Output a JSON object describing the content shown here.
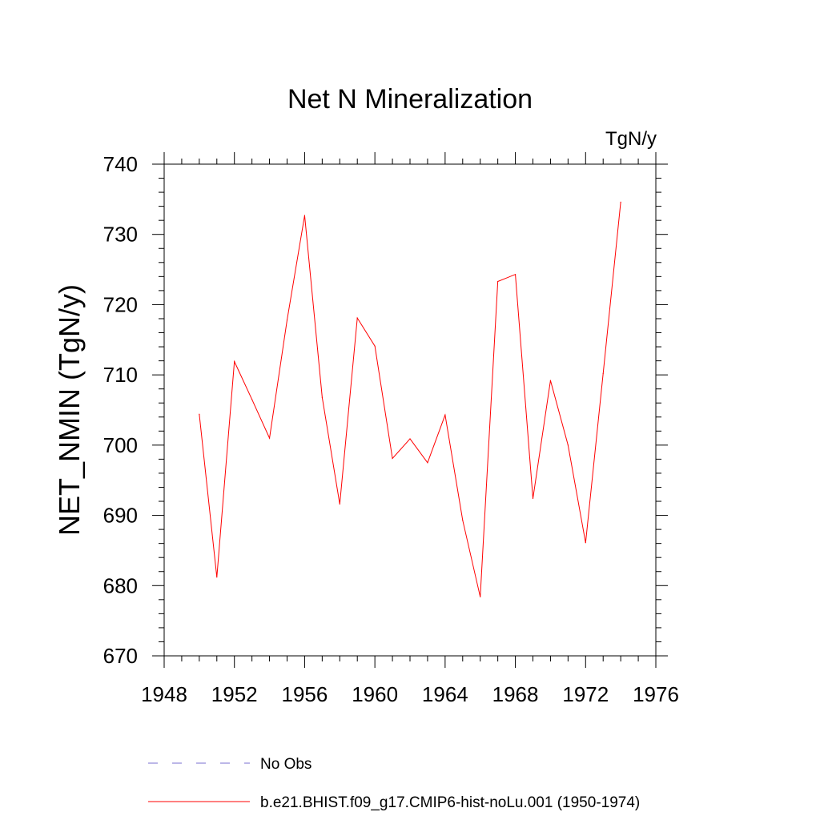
{
  "chart_data": {
    "type": "line",
    "title": "Net N Mineralization",
    "units_label": "TgN/y",
    "ylabel": "NET_NMIN  (TgN/y)",
    "xlabel": "",
    "xlim": [
      1948,
      1976
    ],
    "ylim": [
      670,
      740
    ],
    "x_ticks": [
      1948,
      1952,
      1956,
      1960,
      1964,
      1968,
      1972,
      1976
    ],
    "y_ticks": [
      670,
      680,
      690,
      700,
      710,
      720,
      730,
      740
    ],
    "grid": false,
    "legend_position": "bottom",
    "series": [
      {
        "name": "b.e21.BHIST.f09_g17.CMIP6-hist-noLu.001 (1950-1974)",
        "color": "#ff0000",
        "line_style": "solid",
        "x": [
          1950,
          1951,
          1952,
          1953,
          1954,
          1955,
          1956,
          1957,
          1958,
          1959,
          1960,
          1961,
          1962,
          1963,
          1964,
          1965,
          1966,
          1967,
          1968,
          1969,
          1970,
          1971,
          1972,
          1973,
          1974
        ],
        "y": [
          704.4,
          681.2,
          711.9,
          706.5,
          701.0,
          717.8,
          732.7,
          706.8,
          691.6,
          718.1,
          714.1,
          698.1,
          700.9,
          697.5,
          704.3,
          689.3,
          678.4,
          723.3,
          724.3,
          692.4,
          709.2,
          700.0,
          686.1,
          710.2,
          734.6
        ]
      }
    ],
    "legend": [
      {
        "label": "No Obs",
        "color": "#7a6fd0",
        "line_style": "dashed"
      },
      {
        "label": "b.e21.BHIST.f09_g17.CMIP6-hist-noLu.001 (1950-1974)",
        "color": "#ff0000",
        "line_style": "solid"
      }
    ]
  }
}
